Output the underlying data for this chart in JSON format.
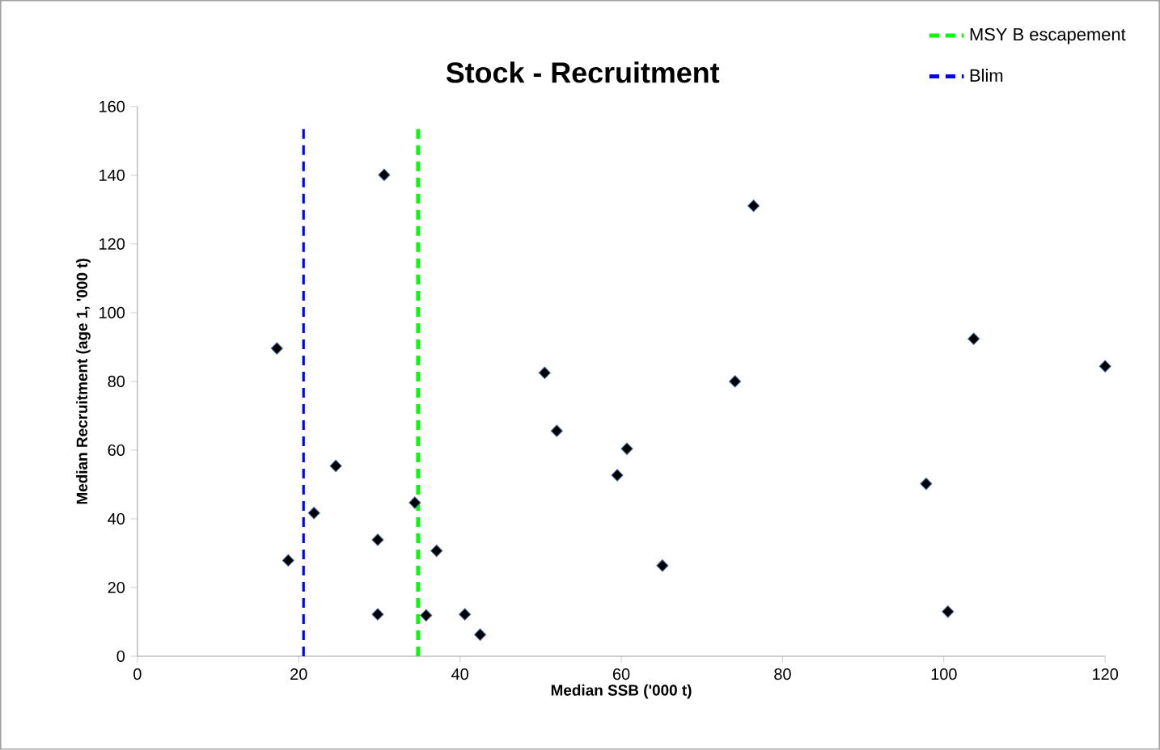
{
  "chart_data": {
    "type": "scatter",
    "title": "Stock - Recruitment",
    "xlabel": "Median SSB ('000 t)",
    "ylabel": "Median Recruitment (age 1, '000 t)",
    "x": [
      17.3,
      30.6,
      50.5,
      52.0,
      24.6,
      34.4,
      21.9,
      29.8,
      37.1,
      18.7,
      29.8,
      35.8,
      40.6,
      42.5,
      76.4,
      103.7,
      120.0,
      74.1,
      60.7,
      59.5,
      97.8,
      65.1,
      100.5
    ],
    "values": [
      89.6,
      140.1,
      82.5,
      65.6,
      55.4,
      44.7,
      41.7,
      33.9,
      30.7,
      27.9,
      12.2,
      11.9,
      12.2,
      6.3,
      131.1,
      92.4,
      84.4,
      80.0,
      60.4,
      52.7,
      50.2,
      26.4,
      13.0
    ],
    "color": "#000000",
    "marker": "diamond",
    "xlim": [
      0,
      120
    ],
    "ylim": [
      0,
      160
    ],
    "xticks": [
      0,
      20,
      40,
      60,
      80,
      100,
      120
    ],
    "yticks": [
      0,
      20,
      40,
      60,
      80,
      100,
      120,
      140,
      160
    ],
    "ref_lines": [
      {
        "axis": "x",
        "value": 34.8,
        "label": "MSY B escapement",
        "color": "#00ff00",
        "line_style": "dashed"
      },
      {
        "axis": "x",
        "value": 20.6,
        "label": "Blim",
        "color": "#0000ff",
        "line_style": "dashed"
      }
    ],
    "legend": "top right"
  }
}
